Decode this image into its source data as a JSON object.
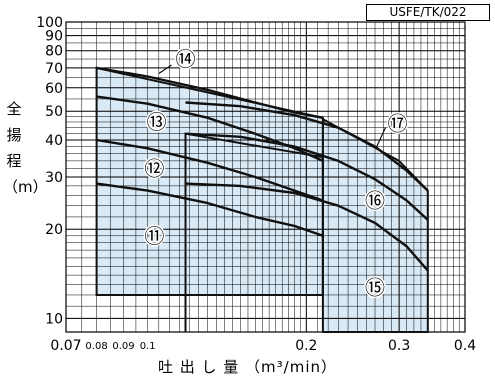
{
  "chart_data": {
    "type": "line",
    "model_code": "USFE/TK/022",
    "xlabel": "吐 出 し 量 （m³/min）",
    "ylabel": "全揚程（m）",
    "x_scale": "log",
    "y_scale": "log",
    "xlim": [
      0.07,
      0.4
    ],
    "ylim": [
      9,
      100
    ],
    "x_ticks_major": [
      {
        "value": 0.07,
        "label": "0.07"
      },
      {
        "value": 0.2,
        "label": "0.2"
      },
      {
        "value": 0.3,
        "label": "0.3"
      },
      {
        "value": 0.4,
        "label": "0.4"
      }
    ],
    "x_ticks_minor": [
      {
        "value": 0.08,
        "label": "0.08"
      },
      {
        "value": 0.09,
        "label": "0.09"
      },
      {
        "value": 0.1,
        "label": "0.1"
      }
    ],
    "y_ticks": [
      {
        "value": 10,
        "label": "10"
      },
      {
        "value": 20,
        "label": "20"
      },
      {
        "value": 30,
        "label": "30"
      },
      {
        "value": 40,
        "label": "40"
      },
      {
        "value": 50,
        "label": "50"
      },
      {
        "value": 60,
        "label": "60"
      },
      {
        "value": 70,
        "label": "70"
      },
      {
        "value": 80,
        "label": "80"
      },
      {
        "value": 90,
        "label": "90"
      },
      {
        "value": 100,
        "label": "100"
      }
    ],
    "grid": true,
    "regions": [
      {
        "name": "⑪",
        "points": [
          [
            0.08,
            12
          ],
          [
            0.08,
            70
          ],
          [
            0.215,
            47.5
          ],
          [
            0.215,
            12
          ]
        ]
      },
      {
        "name": "⑮",
        "points": [
          [
            0.118,
            9
          ],
          [
            0.118,
            42
          ],
          [
            0.215,
            35
          ],
          [
            0.215,
            12
          ],
          [
            0.118,
            12
          ]
        ]
      },
      {
        "name": "⑮",
        "points": [
          [
            0.215,
            12
          ],
          [
            0.215,
            47
          ],
          [
            0.3,
            34
          ],
          [
            0.34,
            27
          ],
          [
            0.34,
            9
          ],
          [
            0.215,
            9
          ]
        ]
      }
    ],
    "series": [
      {
        "name": "⑭",
        "x": [
          0.08,
          0.1,
          0.13,
          0.16,
          0.19,
          0.215
        ],
        "y": [
          70,
          65.5,
          59,
          53.5,
          49.5,
          47.5
        ]
      },
      {
        "name": "⑬",
        "x": [
          0.08,
          0.1,
          0.13,
          0.16,
          0.19,
          0.215
        ],
        "y": [
          56,
          53,
          47.5,
          42,
          37.5,
          34
        ]
      },
      {
        "name": "⑫",
        "x": [
          0.08,
          0.1,
          0.13,
          0.16,
          0.19,
          0.215
        ],
        "y": [
          40,
          37.5,
          33.5,
          30,
          27,
          25
        ]
      },
      {
        "name": "⑪",
        "x": [
          0.08,
          0.1,
          0.13,
          0.16,
          0.19,
          0.215
        ],
        "y": [
          28.5,
          27,
          24.5,
          22,
          20.5,
          19
        ]
      },
      {
        "name": "⑰",
        "x": [
          0.118,
          0.15,
          0.19,
          0.23,
          0.27,
          0.31,
          0.34
        ],
        "y": [
          53.5,
          52,
          48.5,
          44,
          38,
          31.5,
          27
        ]
      },
      {
        "name": "",
        "x": [
          0.118,
          0.15,
          0.19,
          0.23,
          0.27,
          0.31,
          0.34
        ],
        "y": [
          42,
          41,
          38,
          34,
          29.5,
          25,
          21.5
        ]
      },
      {
        "name": "⑯",
        "x": [
          0.118,
          0.15,
          0.19,
          0.23,
          0.27,
          0.31,
          0.34
        ],
        "y": [
          28.5,
          28,
          26.5,
          24,
          21,
          17.5,
          14.5
        ]
      }
    ],
    "labels": [
      {
        "text": "⑭",
        "x": 0.118,
        "y": 75
      },
      {
        "text": "⑬",
        "x": 0.104,
        "y": 46
      },
      {
        "text": "⑰",
        "x": 0.298,
        "y": 45.5
      },
      {
        "text": "⑫",
        "x": 0.103,
        "y": 32
      },
      {
        "text": "⑯",
        "x": 0.27,
        "y": 25
      },
      {
        "text": "⑪",
        "x": 0.103,
        "y": 19
      },
      {
        "text": "⑮",
        "x": 0.27,
        "y": 12.7
      }
    ]
  }
}
